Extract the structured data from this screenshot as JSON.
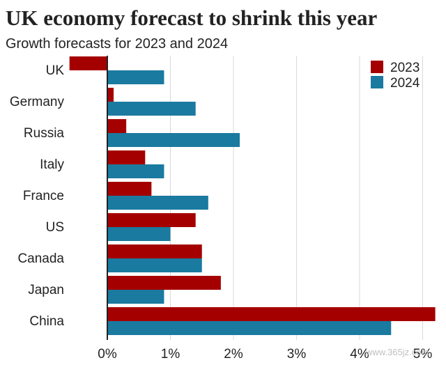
{
  "title": "UK economy forecast to shrink this year",
  "subtitle": "Growth forecasts for 2023 and 2024",
  "watermark": "www.365jz.com",
  "chart_data": {
    "type": "bar",
    "orientation": "horizontal",
    "title": "UK economy forecast to shrink this year",
    "subtitle": "Growth forecasts for 2023 and 2024",
    "categories": [
      "UK",
      "Germany",
      "Russia",
      "Italy",
      "France",
      "US",
      "Canada",
      "Japan",
      "China"
    ],
    "series": [
      {
        "name": "2023",
        "color": "#a50000",
        "values": [
          -0.6,
          0.1,
          0.3,
          0.6,
          0.7,
          1.4,
          1.5,
          1.8,
          5.2
        ]
      },
      {
        "name": "2024",
        "color": "#1a7aa0",
        "values": [
          0.9,
          1.4,
          2.1,
          0.9,
          1.6,
          1.0,
          1.5,
          0.9,
          4.5
        ]
      }
    ],
    "x_ticks": [
      0,
      1,
      2,
      3,
      4,
      5
    ],
    "x_tick_labels": [
      "0%",
      "1%",
      "2%",
      "3%",
      "4%",
      "5%"
    ],
    "xlim": [
      -0.6,
      5.2
    ],
    "grid": true,
    "legend": "top-right"
  }
}
